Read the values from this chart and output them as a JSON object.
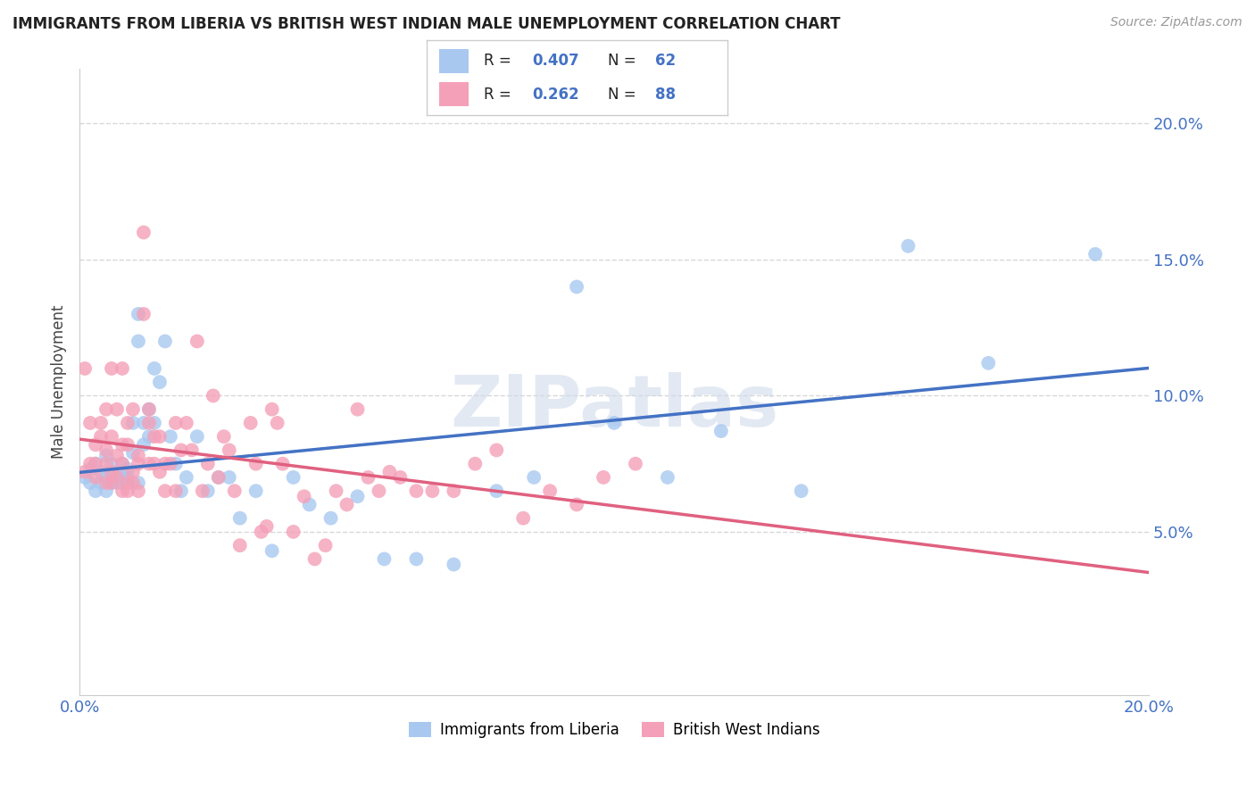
{
  "title": "IMMIGRANTS FROM LIBERIA VS BRITISH WEST INDIAN MALE UNEMPLOYMENT CORRELATION CHART",
  "source": "Source: ZipAtlas.com",
  "ylabel": "Male Unemployment",
  "xlim": [
    0.0,
    0.2
  ],
  "ylim": [
    -0.01,
    0.22
  ],
  "ytick_positions": [
    0.05,
    0.1,
    0.15,
    0.2
  ],
  "ytick_labels": [
    "5.0%",
    "10.0%",
    "15.0%",
    "20.0%"
  ],
  "legend1_label": "Immigrants from Liberia",
  "legend2_label": "British West Indians",
  "series1_color": "#a8c8f0",
  "series2_color": "#f4a0b8",
  "series1_R": "0.407",
  "series1_N": "62",
  "series2_R": "0.262",
  "series2_N": "88",
  "series1_line_color": "#4472c4",
  "series2_line_color": "#e06080",
  "watermark": "ZIPatlas",
  "background_color": "#ffffff",
  "grid_color": "#d8d8d8",
  "series1_x": [
    0.001,
    0.002,
    0.002,
    0.003,
    0.003,
    0.004,
    0.004,
    0.005,
    0.005,
    0.005,
    0.006,
    0.006,
    0.006,
    0.007,
    0.007,
    0.008,
    0.008,
    0.008,
    0.009,
    0.009,
    0.009,
    0.01,
    0.01,
    0.011,
    0.011,
    0.011,
    0.012,
    0.012,
    0.013,
    0.013,
    0.014,
    0.014,
    0.015,
    0.016,
    0.017,
    0.018,
    0.019,
    0.02,
    0.022,
    0.024,
    0.026,
    0.028,
    0.03,
    0.033,
    0.036,
    0.04,
    0.043,
    0.047,
    0.052,
    0.057,
    0.063,
    0.07,
    0.078,
    0.085,
    0.093,
    0.1,
    0.11,
    0.12,
    0.135,
    0.155,
    0.17,
    0.19
  ],
  "series1_y": [
    0.07,
    0.068,
    0.073,
    0.065,
    0.075,
    0.068,
    0.072,
    0.065,
    0.07,
    0.078,
    0.068,
    0.072,
    0.075,
    0.07,
    0.068,
    0.072,
    0.075,
    0.068,
    0.07,
    0.073,
    0.068,
    0.079,
    0.09,
    0.13,
    0.12,
    0.068,
    0.09,
    0.082,
    0.085,
    0.095,
    0.11,
    0.09,
    0.105,
    0.12,
    0.085,
    0.075,
    0.065,
    0.07,
    0.085,
    0.065,
    0.07,
    0.07,
    0.055,
    0.065,
    0.043,
    0.07,
    0.06,
    0.055,
    0.063,
    0.04,
    0.04,
    0.038,
    0.065,
    0.07,
    0.14,
    0.09,
    0.07,
    0.087,
    0.065,
    0.155,
    0.112,
    0.152
  ],
  "series2_x": [
    0.001,
    0.001,
    0.002,
    0.002,
    0.003,
    0.003,
    0.003,
    0.004,
    0.004,
    0.005,
    0.005,
    0.005,
    0.005,
    0.006,
    0.006,
    0.006,
    0.006,
    0.007,
    0.007,
    0.007,
    0.008,
    0.008,
    0.008,
    0.008,
    0.009,
    0.009,
    0.009,
    0.009,
    0.01,
    0.01,
    0.01,
    0.011,
    0.011,
    0.011,
    0.012,
    0.012,
    0.013,
    0.013,
    0.013,
    0.014,
    0.014,
    0.015,
    0.015,
    0.016,
    0.016,
    0.017,
    0.018,
    0.018,
    0.019,
    0.02,
    0.021,
    0.022,
    0.023,
    0.024,
    0.025,
    0.026,
    0.027,
    0.028,
    0.029,
    0.03,
    0.032,
    0.033,
    0.034,
    0.035,
    0.036,
    0.037,
    0.038,
    0.04,
    0.042,
    0.044,
    0.046,
    0.048,
    0.05,
    0.052,
    0.054,
    0.056,
    0.058,
    0.06,
    0.063,
    0.066,
    0.07,
    0.074,
    0.078,
    0.083,
    0.088,
    0.093,
    0.098,
    0.104
  ],
  "series2_y": [
    0.072,
    0.11,
    0.075,
    0.09,
    0.07,
    0.075,
    0.082,
    0.09,
    0.085,
    0.068,
    0.075,
    0.08,
    0.095,
    0.072,
    0.085,
    0.068,
    0.11,
    0.07,
    0.078,
    0.095,
    0.075,
    0.11,
    0.065,
    0.082,
    0.09,
    0.065,
    0.082,
    0.068,
    0.072,
    0.068,
    0.095,
    0.065,
    0.078,
    0.075,
    0.16,
    0.13,
    0.075,
    0.09,
    0.095,
    0.075,
    0.085,
    0.085,
    0.072,
    0.065,
    0.075,
    0.075,
    0.065,
    0.09,
    0.08,
    0.09,
    0.08,
    0.12,
    0.065,
    0.075,
    0.1,
    0.07,
    0.085,
    0.08,
    0.065,
    0.045,
    0.09,
    0.075,
    0.05,
    0.052,
    0.095,
    0.09,
    0.075,
    0.05,
    0.063,
    0.04,
    0.045,
    0.065,
    0.06,
    0.095,
    0.07,
    0.065,
    0.072,
    0.07,
    0.065,
    0.065,
    0.065,
    0.075,
    0.08,
    0.055,
    0.065,
    0.06,
    0.07,
    0.075
  ]
}
